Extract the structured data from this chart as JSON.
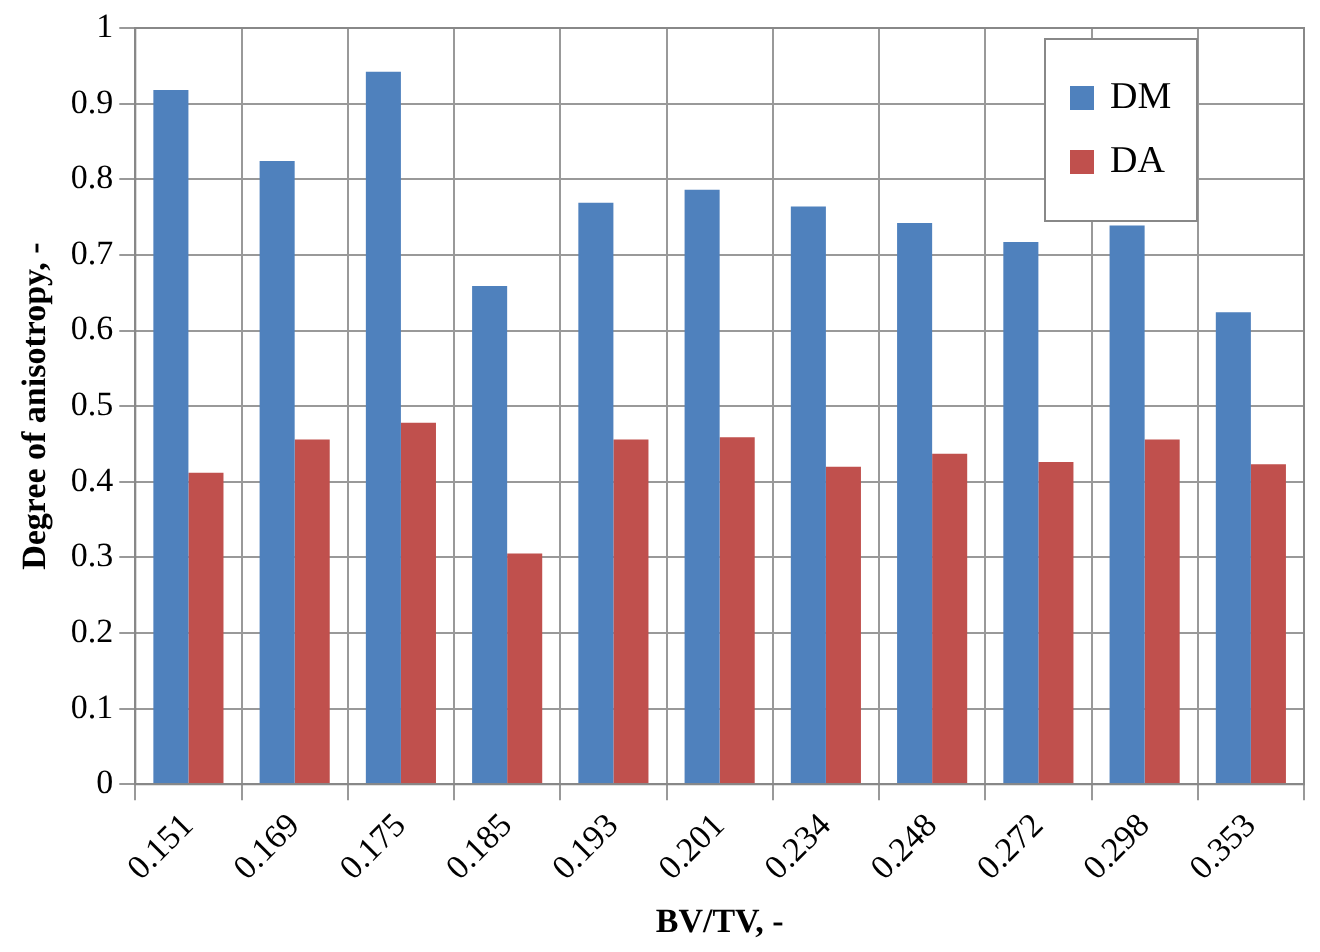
{
  "chart_data": {
    "type": "bar",
    "xlabel": "BV/TV, -",
    "ylabel": "Degree of anisotropy, -",
    "categories": [
      "0.151",
      "0.169",
      "0.175",
      "0.185",
      "0.193",
      "0.201",
      "0.234",
      "0.248",
      "0.272",
      "0.298",
      "0.353"
    ],
    "series": [
      {
        "name": "DM",
        "color": "#4f81bd",
        "values": [
          0.918,
          0.824,
          0.942,
          0.659,
          0.769,
          0.786,
          0.764,
          0.742,
          0.717,
          0.739,
          0.624
        ]
      },
      {
        "name": "DA",
        "color": "#c0504d",
        "values": [
          0.412,
          0.456,
          0.478,
          0.305,
          0.456,
          0.459,
          0.42,
          0.437,
          0.426,
          0.456,
          0.423
        ]
      }
    ],
    "ylim": [
      0,
      1
    ],
    "yticks": [
      0,
      0.1,
      0.2,
      0.3,
      0.4,
      0.5,
      0.6,
      0.7,
      0.8,
      0.9,
      1
    ],
    "grid": true,
    "legend": "top right"
  }
}
